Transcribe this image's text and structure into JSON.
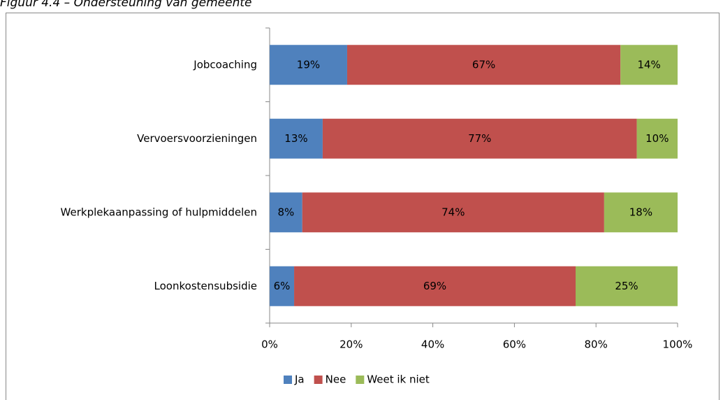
{
  "chart_data": {
    "type": "stacked-bar-horizontal",
    "title": "Figuur 4.4 – Ondersteuning van gemeente",
    "categories": [
      "Jobcoaching",
      "Vervoersvoorzieningen",
      "Werkplekaanpassing of hulpmiddelen",
      "Loonkostensubsidie"
    ],
    "series": [
      {
        "name": "Ja",
        "color": "#4f81bd",
        "values": [
          19,
          13,
          8,
          6
        ],
        "value_labels": [
          "19%",
          "13%",
          "8%",
          "6%"
        ]
      },
      {
        "name": "Nee",
        "color": "#c0504d",
        "values": [
          67,
          77,
          74,
          69
        ],
        "value_labels": [
          "67%",
          "77%",
          "74%",
          "69%"
        ]
      },
      {
        "name": "Weet ik niet",
        "color": "#9bbb59",
        "values": [
          14,
          10,
          18,
          25
        ],
        "value_labels": [
          "14%",
          "10%",
          "18%",
          "25%"
        ]
      }
    ],
    "xlim": [
      0,
      100
    ],
    "xticks": [
      {
        "value": 0,
        "label": "0%"
      },
      {
        "value": 20,
        "label": "20%"
      },
      {
        "value": 40,
        "label": "40%"
      },
      {
        "value": 60,
        "label": "60%"
      },
      {
        "value": 80,
        "label": "80%"
      },
      {
        "value": 100,
        "label": "100%"
      }
    ],
    "legend": "bottom"
  }
}
